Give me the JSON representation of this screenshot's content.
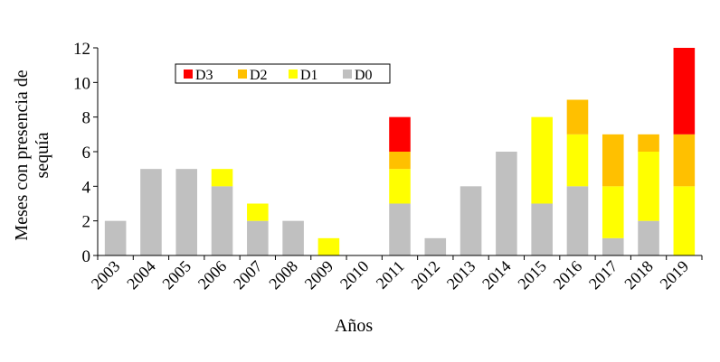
{
  "chart_data": {
    "type": "bar",
    "stacked": true,
    "xlabel": "Años",
    "ylabel_lines": [
      "Meses con presencia de",
      "sequía"
    ],
    "ylim": [
      0,
      12
    ],
    "yticks": [
      0,
      2,
      4,
      6,
      8,
      10,
      12
    ],
    "grid": false,
    "legend_position": "top-left",
    "legend_order": [
      "D3",
      "D2",
      "D1",
      "D0"
    ],
    "categories": [
      "2003",
      "2004",
      "2005",
      "2006",
      "2007",
      "2008",
      "2009",
      "2010",
      "2011",
      "2012",
      "2013",
      "2014",
      "2015",
      "2016",
      "2017",
      "2018",
      "2019"
    ],
    "series": [
      {
        "name": "D0",
        "color": "#c0c0c0",
        "values": [
          2,
          5,
          5,
          4,
          2,
          2,
          0,
          0,
          3,
          1,
          4,
          6,
          3,
          4,
          1,
          2,
          0
        ]
      },
      {
        "name": "D1",
        "color": "#ffff00",
        "values": [
          0,
          0,
          0,
          1,
          1,
          0,
          1,
          0,
          2,
          0,
          0,
          0,
          5,
          3,
          3,
          4,
          4
        ]
      },
      {
        "name": "D2",
        "color": "#ffc000",
        "values": [
          0,
          0,
          0,
          0,
          0,
          0,
          0,
          0,
          1,
          0,
          0,
          0,
          0,
          2,
          3,
          1,
          3
        ]
      },
      {
        "name": "D3",
        "color": "#ff0000",
        "values": [
          0,
          0,
          0,
          0,
          0,
          0,
          0,
          0,
          2,
          0,
          0,
          0,
          0,
          0,
          0,
          0,
          5
        ]
      }
    ]
  }
}
